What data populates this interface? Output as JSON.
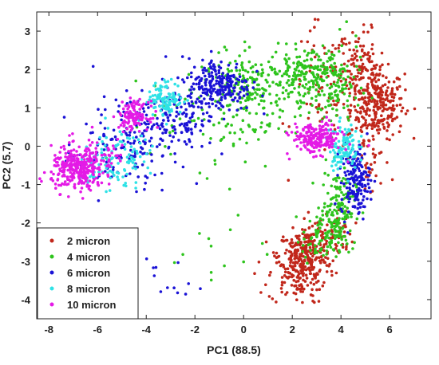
{
  "chart_data": {
    "type": "scatter",
    "title": "",
    "xlabel": "PC1 (88.5)",
    "ylabel": "PC2 (5.7)",
    "xlim": [
      -8.5,
      7.7
    ],
    "ylim": [
      -4.5,
      3.5
    ],
    "xticks": [
      -8,
      -6,
      -4,
      -2,
      0,
      2,
      4,
      6
    ],
    "yticks": [
      -4,
      -3,
      -2,
      -1,
      0,
      1,
      2,
      3
    ],
    "grid": false,
    "legend_position": "bottom-left",
    "series": [
      {
        "name": "2 micron",
        "color": "#c1271b",
        "clusters": [
          {
            "cx": 5.5,
            "cy": 1.1,
            "sx": 0.55,
            "sy": 0.45,
            "n": 260
          },
          {
            "cx": 4.8,
            "cy": 2.0,
            "sx": 0.5,
            "sy": 0.5,
            "n": 120
          },
          {
            "cx": 3.2,
            "cy": 1.4,
            "sx": 0.6,
            "sy": 0.9,
            "n": 70
          },
          {
            "cx": 2.5,
            "cy": -2.8,
            "sx": 0.55,
            "sy": 0.3,
            "n": 220
          },
          {
            "cx": 2.2,
            "cy": -3.4,
            "sx": 0.6,
            "sy": 0.35,
            "n": 120
          },
          {
            "cx": 3.5,
            "cy": -2.3,
            "sx": 0.5,
            "sy": 0.3,
            "n": 70
          },
          {
            "cx": 5.2,
            "cy": -0.4,
            "sx": 0.4,
            "sy": 0.5,
            "n": 40
          }
        ]
      },
      {
        "name": "4 micron",
        "color": "#2ec41d",
        "clusters": [
          {
            "cx": 2.7,
            "cy": 1.9,
            "sx": 0.8,
            "sy": 0.35,
            "n": 160
          },
          {
            "cx": 0.5,
            "cy": 1.5,
            "sx": 1.1,
            "sy": 0.45,
            "n": 220
          },
          {
            "cx": 3.8,
            "cy": 1.5,
            "sx": 0.5,
            "sy": 0.6,
            "n": 90
          },
          {
            "cx": 3.9,
            "cy": -1.6,
            "sx": 0.35,
            "sy": 0.5,
            "n": 150
          },
          {
            "cx": 3.2,
            "cy": -2.4,
            "sx": 0.4,
            "sy": 0.35,
            "n": 80
          },
          {
            "cx": -1.0,
            "cy": 0.6,
            "sx": 1.4,
            "sy": 0.6,
            "n": 60
          },
          {
            "cx": -1.0,
            "cy": -2.6,
            "sx": 1.0,
            "sy": 0.7,
            "n": 14
          }
        ]
      },
      {
        "name": "6 micron",
        "color": "#1a12d6",
        "clusters": [
          {
            "cx": -1.0,
            "cy": 1.6,
            "sx": 0.65,
            "sy": 0.35,
            "n": 230
          },
          {
            "cx": 4.6,
            "cy": -0.9,
            "sx": 0.3,
            "sy": 0.45,
            "n": 170
          },
          {
            "cx": -4.2,
            "cy": 0.3,
            "sx": 1.0,
            "sy": 0.5,
            "n": 130
          },
          {
            "cx": -2.8,
            "cy": 0.9,
            "sx": 0.8,
            "sy": 0.4,
            "n": 90
          },
          {
            "cx": -5.5,
            "cy": -0.3,
            "sx": 0.9,
            "sy": 0.5,
            "n": 60
          },
          {
            "cx": -2.8,
            "cy": -3.5,
            "sx": 0.6,
            "sy": 0.3,
            "n": 12
          }
        ]
      },
      {
        "name": "8 micron",
        "color": "#2fe2e6",
        "clusters": [
          {
            "cx": -3.2,
            "cy": 1.25,
            "sx": 0.35,
            "sy": 0.22,
            "n": 110
          },
          {
            "cx": 4.1,
            "cy": 0.0,
            "sx": 0.3,
            "sy": 0.3,
            "n": 110
          },
          {
            "cx": -5.5,
            "cy": -0.5,
            "sx": 0.65,
            "sy": 0.35,
            "n": 80
          },
          {
            "cx": -4.8,
            "cy": 0.0,
            "sx": 0.6,
            "sy": 0.35,
            "n": 40
          }
        ]
      },
      {
        "name": "10 micron",
        "color": "#e41ae6",
        "clusters": [
          {
            "cx": -6.8,
            "cy": -0.6,
            "sx": 0.55,
            "sy": 0.28,
            "n": 300
          },
          {
            "cx": -4.5,
            "cy": 0.8,
            "sx": 0.3,
            "sy": 0.18,
            "n": 120
          },
          {
            "cx": 3.0,
            "cy": 0.2,
            "sx": 0.5,
            "sy": 0.2,
            "n": 200
          },
          {
            "cx": -5.8,
            "cy": -0.2,
            "sx": 0.6,
            "sy": 0.3,
            "n": 40
          }
        ]
      }
    ]
  }
}
